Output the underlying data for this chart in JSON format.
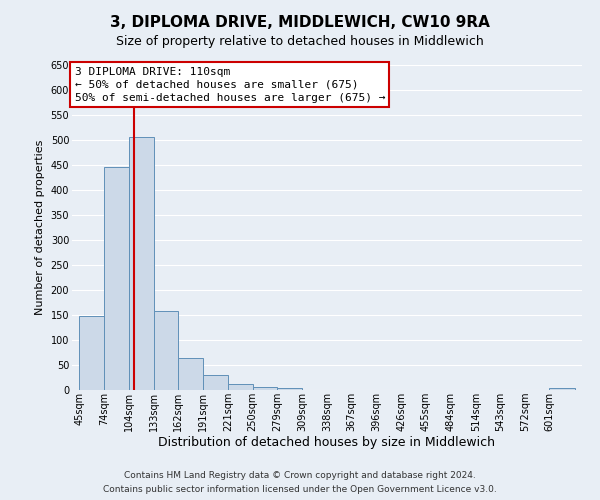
{
  "title": "3, DIPLOMA DRIVE, MIDDLEWICH, CW10 9RA",
  "subtitle": "Size of property relative to detached houses in Middlewich",
  "xlabel": "Distribution of detached houses by size in Middlewich",
  "ylabel": "Number of detached properties",
  "bar_edges": [
    45,
    74,
    104,
    133,
    162,
    191,
    221,
    250,
    279,
    309,
    338,
    367,
    396,
    426,
    455,
    484,
    514,
    543,
    572,
    601,
    631
  ],
  "bar_heights": [
    148,
    447,
    507,
    158,
    65,
    30,
    12,
    6,
    5,
    0,
    0,
    0,
    0,
    0,
    0,
    0,
    0,
    0,
    0,
    5
  ],
  "bar_color": "#ccd9e8",
  "bar_edge_color": "#6090b8",
  "property_line_x": 110,
  "property_line_color": "#cc0000",
  "ylim": [
    0,
    650
  ],
  "yticks": [
    0,
    50,
    100,
    150,
    200,
    250,
    300,
    350,
    400,
    450,
    500,
    550,
    600,
    650
  ],
  "annotation_title": "3 DIPLOMA DRIVE: 110sqm",
  "annotation_line1": "← 50% of detached houses are smaller (675)",
  "annotation_line2": "50% of semi-detached houses are larger (675) →",
  "annotation_box_color": "#cc0000",
  "footer_line1": "Contains HM Land Registry data © Crown copyright and database right 2024.",
  "footer_line2": "Contains public sector information licensed under the Open Government Licence v3.0.",
  "background_color": "#e8eef5",
  "grid_color": "#ffffff",
  "title_fontsize": 11,
  "subtitle_fontsize": 9,
  "xlabel_fontsize": 9,
  "ylabel_fontsize": 8,
  "tick_fontsize": 7,
  "footer_fontsize": 6.5,
  "annotation_fontsize": 8
}
